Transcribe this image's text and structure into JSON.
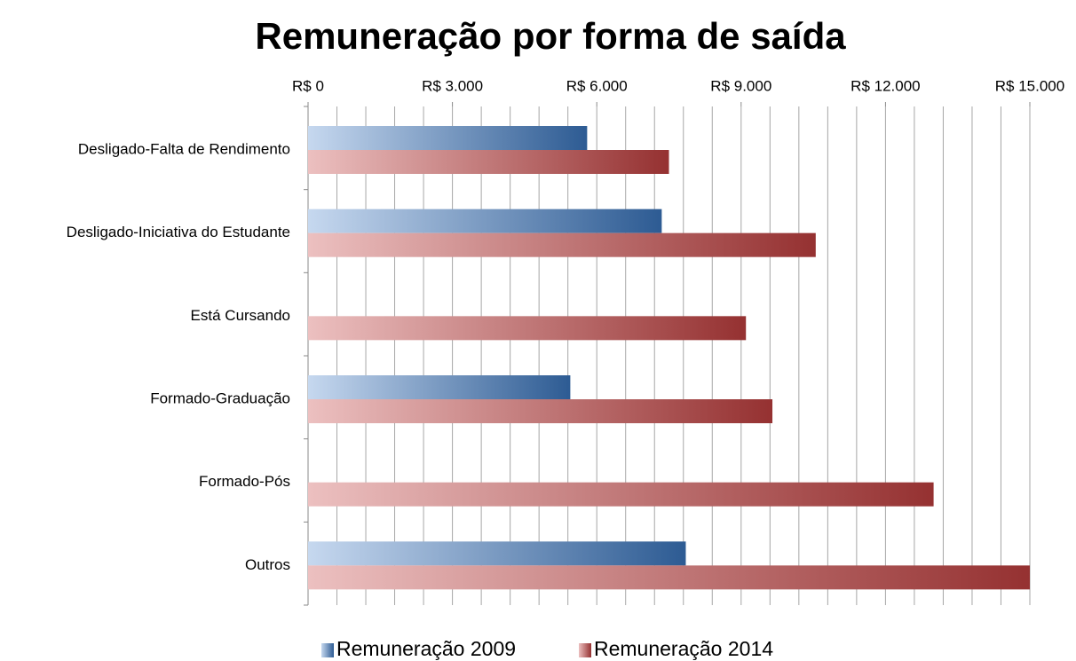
{
  "chart_data": {
    "type": "hbar",
    "title": "Remuneração por forma de saída",
    "categories": [
      "Desligado-Falta de Rendimento",
      "Desligado-Iniciativa do Estudante",
      "Está Cursando",
      "Formado-Graduação",
      "Formado-Pós",
      "Outros"
    ],
    "series": [
      {
        "name": "Remuneração 2009",
        "color": [
          "#c6d8ef",
          "#2d5b93"
        ],
        "values": [
          5800,
          7350,
          null,
          5450,
          null,
          7850
        ]
      },
      {
        "name": "Remuneração 2014",
        "color": [
          "#ecc0c0",
          "#953131"
        ],
        "values": [
          7500,
          10550,
          9100,
          9650,
          13000,
          15000
        ]
      }
    ],
    "xlim": [
      0,
      15000
    ],
    "xticks": [
      {
        "value": 0,
        "label": "R$ 0"
      },
      {
        "value": 3000,
        "label": "R$ 3.000"
      },
      {
        "value": 6000,
        "label": "R$ 6.000"
      },
      {
        "value": 9000,
        "label": "R$ 9.000"
      },
      {
        "value": 12000,
        "label": "R$ 12.000"
      },
      {
        "value": 15000,
        "label": "R$ 15.000"
      }
    ],
    "xticks_minor": [
      600,
      1200,
      1800,
      2400,
      3600,
      4200,
      4800,
      5400,
      6600,
      7200,
      7800,
      8400,
      9600,
      10200,
      10800,
      11400,
      12600,
      13200,
      13800,
      14400
    ],
    "grid": true,
    "legend": "bottom"
  }
}
